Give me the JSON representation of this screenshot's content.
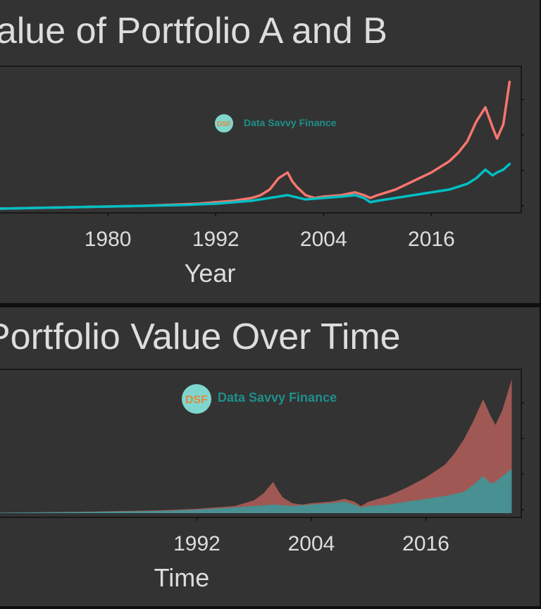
{
  "chart_data": [
    {
      "type": "line",
      "title": "Value of Portfolio A and B",
      "xlabel": "Year",
      "ylabel": "",
      "x_ticks": [
        "1980",
        "1992",
        "2004",
        "2016"
      ],
      "xlim": [
        1968,
        2026
      ],
      "ylim": [
        0,
        100
      ],
      "grid": false,
      "watermark": "Data Savvy Finance",
      "watermark_badge": "DSF",
      "series": [
        {
          "name": "",
          "color": "#f8766d",
          "x": [
            1968,
            1972,
            1976,
            1980,
            1984,
            1988,
            1990,
            1992,
            1994,
            1996,
            1997,
            1998,
            1999,
            2000,
            2000.5,
            2001,
            2002,
            2003,
            2004,
            2006,
            2007.5,
            2008.5,
            2009.2,
            2010,
            2012,
            2014,
            2016,
            2017,
            2018,
            2019,
            2020,
            2021,
            2022,
            2022.8,
            2023.3,
            2024,
            2024.7
          ],
          "y": [
            0.5,
            1,
            1.5,
            2,
            2.5,
            3.5,
            4,
            5,
            6,
            8,
            10,
            14,
            22,
            26,
            20,
            16,
            10,
            8,
            9,
            10,
            12,
            10,
            8,
            10,
            14,
            20,
            26,
            30,
            34,
            40,
            48,
            62,
            72,
            58,
            50,
            60,
            90
          ]
        },
        {
          "name": "",
          "color": "#00bfc4",
          "x": [
            1968,
            1972,
            1976,
            1980,
            1984,
            1988,
            1992,
            1996,
            1998,
            2000,
            2002,
            2004,
            2006,
            2007.5,
            2008.5,
            2009.2,
            2010,
            2012,
            2014,
            2016,
            2018,
            2020,
            2021,
            2022,
            2022.8,
            2023.3,
            2024,
            2024.7
          ],
          "y": [
            0.5,
            1,
            1.5,
            2,
            2.5,
            3,
            4,
            6,
            8,
            10,
            7,
            8,
            9,
            10,
            8,
            5,
            6,
            8,
            10,
            12,
            14,
            18,
            22,
            28,
            24,
            26,
            28,
            32
          ]
        }
      ]
    },
    {
      "type": "area",
      "title": "Portfolio Value Over Time",
      "xlabel": "Time",
      "ylabel": "",
      "x_ticks": [
        "1992",
        "2004",
        "2016"
      ],
      "xlim": [
        1971,
        2026
      ],
      "ylim": [
        0,
        100
      ],
      "grid": false,
      "watermark": "Data Savvy Finance",
      "watermark_badge": "DSF",
      "series": [
        {
          "name": "",
          "color": "#f8766d",
          "x": [
            1971,
            1976,
            1980,
            1984,
            1988,
            1992,
            1996,
            1998,
            1999,
            2000,
            2000.5,
            2001,
            2002,
            2003,
            2004,
            2006,
            2007.5,
            2008.5,
            2009.2,
            2010,
            2012,
            2014,
            2016,
            2018,
            2019,
            2020,
            2021,
            2022,
            2022.8,
            2023.3,
            2024,
            2025
          ],
          "y": [
            0.3,
            0.7,
            1,
            1.5,
            2,
            3,
            5,
            9,
            14,
            22,
            16,
            11,
            7,
            6,
            7,
            8,
            10,
            8,
            5,
            8,
            12,
            18,
            25,
            34,
            42,
            52,
            65,
            80,
            68,
            62,
            72,
            94
          ]
        },
        {
          "name": "",
          "color": "#00bfc4",
          "x": [
            1971,
            1976,
            1980,
            1984,
            1988,
            1992,
            1996,
            1998,
            2000,
            2002,
            2004,
            2006,
            2007.5,
            2008.5,
            2009.2,
            2010,
            2012,
            2014,
            2016,
            2018,
            2020,
            2021,
            2022,
            2022.8,
            2023.3,
            2024,
            2025
          ],
          "y": [
            0.3,
            0.6,
            0.9,
            1.2,
            1.6,
            2.5,
            4,
            5,
            6,
            5,
            6,
            7,
            8,
            6,
            4,
            5,
            6,
            8,
            10,
            12,
            15,
            20,
            26,
            21,
            22,
            26,
            31
          ]
        }
      ]
    }
  ]
}
